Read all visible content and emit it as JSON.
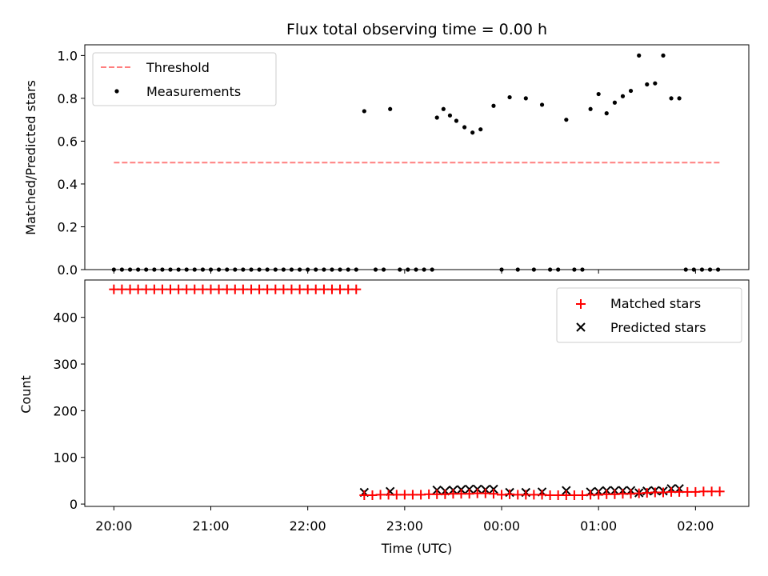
{
  "chart_data": [
    {
      "type": "scatter",
      "title": "Flux total observing time = 0.00 h",
      "xlabel": "",
      "ylabel": "Matched/Predicted stars",
      "ylim": [
        0,
        1.05
      ],
      "yticks": [
        "0.0",
        "0.2",
        "0.4",
        "0.6",
        "0.8",
        "1.0"
      ],
      "xlim_hours": [
        19.7,
        26.55
      ],
      "x_tick_hours": [
        20,
        21,
        22,
        23,
        24,
        25,
        26
      ],
      "legend": {
        "placement": "upper-left",
        "entries": [
          "Threshold",
          "Measurements"
        ]
      },
      "colors": {
        "threshold": "#ff7f7f",
        "measurements": "#000000"
      },
      "series": [
        {
          "name": "Threshold",
          "kind": "line",
          "x": [
            20.0,
            26.25
          ],
          "y": [
            0.5,
            0.5
          ]
        },
        {
          "name": "Measurements",
          "kind": "scatter",
          "x": [
            20.0,
            20.083,
            20.167,
            20.25,
            20.333,
            20.417,
            20.5,
            20.583,
            20.667,
            20.75,
            20.833,
            20.917,
            21.0,
            21.083,
            21.167,
            21.25,
            21.333,
            21.417,
            21.5,
            21.583,
            21.667,
            21.75,
            21.833,
            21.917,
            22.0,
            22.083,
            22.167,
            22.25,
            22.333,
            22.417,
            22.5,
            22.583,
            22.7,
            22.783,
            22.85,
            22.95,
            23.033,
            23.117,
            23.2,
            23.283,
            23.333,
            23.4,
            23.467,
            23.533,
            23.617,
            23.7,
            23.783,
            23.917,
            24.0,
            24.083,
            24.167,
            24.25,
            24.333,
            24.417,
            24.5,
            24.583,
            24.667,
            24.75,
            24.833,
            24.917,
            25.0,
            25.083,
            25.167,
            25.25,
            25.333,
            25.417,
            25.5,
            25.583,
            25.667,
            25.75,
            25.833,
            25.9,
            25.983,
            26.067,
            26.15,
            26.233
          ],
          "y": [
            0,
            0,
            0,
            0,
            0,
            0,
            0,
            0,
            0,
            0,
            0,
            0,
            0,
            0,
            0,
            0,
            0,
            0,
            0,
            0,
            0,
            0,
            0,
            0,
            0,
            0,
            0,
            0,
            0,
            0,
            0,
            0.74,
            0,
            0,
            0.75,
            0,
            0,
            0,
            0,
            0,
            0.71,
            0.75,
            0.72,
            0.695,
            0.665,
            0.64,
            0.655,
            0.765,
            0,
            0.805,
            0,
            0.8,
            0,
            0.77,
            0,
            0,
            0.7,
            0,
            0,
            0.75,
            0.82,
            0.73,
            0.78,
            0.81,
            0.835,
            1.0,
            0.865,
            0.87,
            1.0,
            0.8,
            0.8,
            0,
            0,
            0,
            0,
            0
          ]
        }
      ]
    },
    {
      "type": "scatter",
      "title": "",
      "xlabel": "Time (UTC)",
      "ylabel": "Count",
      "ylim": [
        -5,
        480
      ],
      "yticks": [
        "0",
        "100",
        "200",
        "300",
        "400"
      ],
      "xlim_hours": [
        19.7,
        26.55
      ],
      "x_tick_hours": [
        20,
        21,
        22,
        23,
        24,
        25,
        26
      ],
      "x_tick_labels": [
        "20:00",
        "21:00",
        "22:00",
        "23:00",
        "00:00",
        "01:00",
        "02:00"
      ],
      "legend": {
        "placement": "upper-right",
        "entries": [
          "Matched stars",
          "Predicted stars"
        ]
      },
      "colors": {
        "matched": "#ff0000",
        "predicted": "#000000"
      },
      "series": [
        {
          "name": "Matched stars",
          "marker": "plus",
          "x": [
            20.0,
            20.083,
            20.167,
            20.25,
            20.333,
            20.417,
            20.5,
            20.583,
            20.667,
            20.75,
            20.833,
            20.917,
            21.0,
            21.083,
            21.167,
            21.25,
            21.333,
            21.417,
            21.5,
            21.583,
            21.667,
            21.75,
            21.833,
            21.917,
            22.0,
            22.083,
            22.167,
            22.25,
            22.333,
            22.417,
            22.5,
            22.583,
            22.667,
            22.75,
            22.833,
            22.917,
            23.0,
            23.083,
            23.167,
            23.25,
            23.333,
            23.417,
            23.5,
            23.583,
            23.667,
            23.75,
            23.833,
            23.917,
            24.0,
            24.083,
            24.167,
            24.25,
            24.333,
            24.417,
            24.5,
            24.583,
            24.667,
            24.75,
            24.833,
            24.917,
            25.0,
            25.083,
            25.167,
            25.25,
            25.333,
            25.417,
            25.5,
            25.583,
            25.667,
            25.75,
            25.833,
            25.917,
            26.0,
            26.083,
            26.167,
            26.25
          ],
          "y": [
            460,
            460,
            460,
            460,
            460,
            460,
            460,
            460,
            460,
            460,
            460,
            460,
            460,
            460,
            460,
            460,
            460,
            460,
            460,
            460,
            460,
            460,
            460,
            460,
            460,
            460,
            460,
            460,
            460,
            460,
            460,
            19,
            19,
            20,
            20,
            20,
            20,
            20,
            20,
            21,
            21,
            21,
            22,
            22,
            22,
            23,
            23,
            22,
            20,
            21,
            20,
            20,
            20,
            20,
            19,
            19,
            19,
            19,
            19,
            20,
            20,
            21,
            21,
            22,
            22,
            23,
            24,
            25,
            25,
            26,
            26,
            26,
            26,
            27,
            27,
            27
          ]
        },
        {
          "name": "Predicted stars",
          "marker": "x",
          "x": [
            22.583,
            22.85,
            23.333,
            23.417,
            23.5,
            23.583,
            23.667,
            23.75,
            23.833,
            23.917,
            24.083,
            24.25,
            24.417,
            24.667,
            24.917,
            25.0,
            25.083,
            25.167,
            25.25,
            25.333,
            25.417,
            25.5,
            25.583,
            25.667,
            25.75,
            25.833
          ],
          "y": [
            25,
            27,
            30,
            28,
            30,
            31,
            32,
            32,
            31,
            32,
            25,
            25,
            26,
            29,
            26,
            27,
            29,
            29,
            29,
            29,
            24,
            28,
            29,
            28,
            33,
            33
          ]
        }
      ]
    }
  ]
}
